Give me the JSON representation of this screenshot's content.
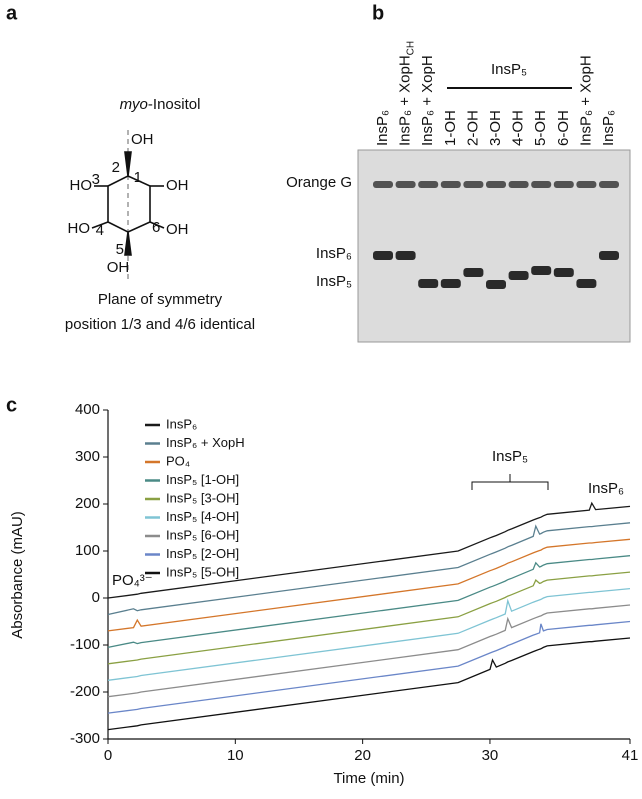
{
  "panels": [
    "a",
    "b",
    "c"
  ],
  "structure": {
    "title_italic": "myo",
    "title_rest": "-Inositol",
    "labels": [
      "OH",
      "HO",
      "3",
      "2",
      "1",
      "OH",
      "HO",
      "4",
      "5",
      "6",
      "OH",
      "OH"
    ],
    "caption": [
      "Plane of symmetry",
      "position 1/3 and 4/6 identical"
    ]
  },
  "gel": {
    "lanes": [
      "InsP₆",
      {
        "text": "InsP₆ + XopH",
        "sub": "CH"
      },
      "InsP₆ + XopH",
      "1-OH",
      "2-OH",
      "3-OH",
      "4-OH",
      "5-OH",
      "6-OH",
      "InsP₆ + XopH",
      "InsP₆"
    ],
    "group_label": "InsP₅",
    "row_labels": [
      "Orange G",
      "InsP₆",
      "InsP₅"
    ]
  },
  "chart_data": {
    "type": "line",
    "x_label": "Time (min)",
    "y_label": "Absorbance (mAU)",
    "x": [
      0,
      2,
      2.3,
      2.6,
      27.5,
      30,
      30.2,
      30.5,
      31.2,
      31.4,
      31.7,
      33.4,
      33.6,
      33.9,
      34,
      34.2,
      34.5,
      37.8,
      38,
      38.3,
      41
    ],
    "xlim": [
      0,
      41
    ],
    "xticks": [
      0,
      10,
      20,
      30,
      41
    ],
    "ylim": [
      -300,
      400
    ],
    "yticks": [
      -300,
      -200,
      -100,
      0,
      100,
      200,
      300,
      400
    ],
    "legend": "top-left",
    "annotations": [
      "PO₄³⁻",
      "InsP₅",
      "InsP₆"
    ],
    "series": [
      {
        "name": "InsP₆",
        "color": "#1a1a1a",
        "values": [
          0,
          7,
          8,
          10,
          100,
          128,
          130,
          133,
          141,
          144,
          147,
          166,
          168,
          171,
          172,
          175,
          178,
          187,
          202,
          188,
          195
        ]
      },
      {
        "name": "InsP₆ + XopH",
        "color": "#5a7f8f",
        "values": [
          -35,
          -23,
          -27,
          -25,
          65,
          93,
          95,
          98,
          106,
          109,
          112,
          131,
          153,
          136,
          137,
          140,
          143,
          152,
          152,
          153,
          160
        ]
      },
      {
        "name": "PO₄",
        "color": "#d4762a",
        "values": [
          -70,
          -63,
          -47,
          -60,
          30,
          58,
          60,
          63,
          71,
          74,
          77,
          96,
          98,
          101,
          102,
          105,
          108,
          117,
          117,
          118,
          125
        ]
      },
      {
        "name": "InsP₅ [1-OH]",
        "color": "#4a8a86",
        "values": [
          -105,
          -94,
          -97,
          -95,
          -5,
          23,
          25,
          28,
          36,
          39,
          42,
          61,
          75,
          66,
          67,
          70,
          73,
          82,
          82,
          83,
          90
        ]
      },
      {
        "name": "InsP₅ [3-OH]",
        "color": "#8aa043",
        "values": [
          -140,
          -133,
          -132,
          -130,
          -40,
          -12,
          -10,
          -7,
          1,
          4,
          7,
          26,
          38,
          31,
          32,
          35,
          38,
          47,
          47,
          48,
          55
        ]
      },
      {
        "name": "InsP₅ [4-OH]",
        "color": "#7fc4d4",
        "values": [
          -175,
          -168,
          -167,
          -165,
          -75,
          -47,
          -45,
          -42,
          -34,
          -6,
          -28,
          -9,
          -7,
          -4,
          -3,
          0,
          3,
          12,
          12,
          13,
          20
        ]
      },
      {
        "name": "InsP₅ [6-OH]",
        "color": "#8c8c8c",
        "values": [
          -210,
          -203,
          -202,
          -200,
          -110,
          -82,
          -80,
          -77,
          -69,
          -44,
          -63,
          -44,
          -42,
          -39,
          -38,
          -35,
          -32,
          -23,
          -23,
          -22,
          -15
        ]
      },
      {
        "name": "InsP₅ [2-OH]",
        "color": "#6a86c8",
        "values": [
          -245,
          -238,
          -237,
          -235,
          -145,
          -117,
          -115,
          -112,
          -104,
          -101,
          -98,
          -79,
          -77,
          -74,
          -55,
          -70,
          -67,
          -58,
          -58,
          -57,
          -50
        ]
      },
      {
        "name": "InsP₅ [5-OH]",
        "color": "#111111",
        "values": [
          -280,
          -273,
          -272,
          -270,
          -180,
          -152,
          -132,
          -147,
          -139,
          -136,
          -133,
          -114,
          -112,
          -109,
          -108,
          -105,
          -102,
          -93,
          -93,
          -92,
          -85
        ]
      }
    ]
  }
}
